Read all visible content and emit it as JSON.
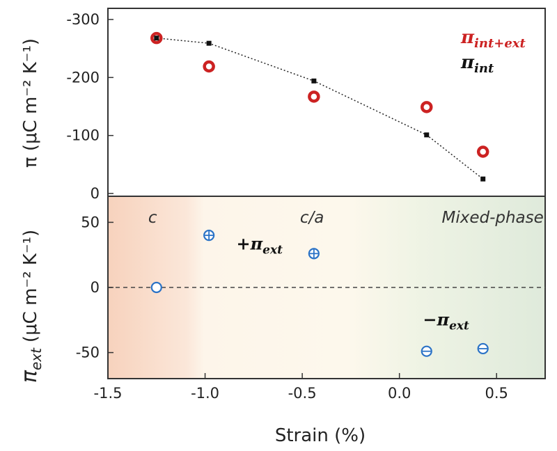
{
  "chart_data": [
    {
      "type": "scatter",
      "panel": "top",
      "ylabel": "π (μC m⁻² K⁻¹)",
      "ylim": [
        0,
        -300
      ],
      "yticks": [
        -300,
        -200,
        -100,
        0
      ],
      "ytick_labels": [
        "-300",
        "-200",
        "-100",
        "0"
      ],
      "legend": {
        "placement": "top-right",
        "entries": [
          {
            "text": "π",
            "sub": "int+ext",
            "color": "#cc2222"
          },
          {
            "text": "π",
            "sub": "int",
            "color": "#111111"
          }
        ]
      },
      "series": [
        {
          "name": "int+ext",
          "marker": "open-circle",
          "color": "#cc2222",
          "x": [
            -1.25,
            -0.98,
            -0.44,
            0.14,
            0.43
          ],
          "y": [
            -268,
            -219,
            -167,
            -149,
            -72
          ]
        },
        {
          "name": "int",
          "marker": "square-dotted-line",
          "color": "#111111",
          "x": [
            -1.25,
            -0.98,
            -0.44,
            0.14,
            0.43
          ],
          "y": [
            -268,
            -259,
            -194,
            -101,
            -25
          ]
        }
      ]
    },
    {
      "type": "scatter",
      "panel": "bottom",
      "xlabel": "Strain (%)",
      "ylabel": "πext (μC m⁻² K⁻¹)",
      "ylabel_main": "π",
      "ylabel_sub": "ext",
      "ylabel_rest": "(μC m⁻² K⁻¹)",
      "xlim": [
        -1.5,
        0.75
      ],
      "ylim": [
        -70,
        70
      ],
      "xticks": [
        -1.5,
        -1.0,
        -0.5,
        0.0,
        0.5
      ],
      "xtick_labels": [
        "-1.5",
        "-1.0",
        "-0.5",
        "0.0",
        "0.5"
      ],
      "yticks": [
        50,
        0,
        -50
      ],
      "ytick_labels": [
        "50",
        "0",
        "-50"
      ],
      "regions": [
        {
          "label": "c",
          "x": -1.27
        },
        {
          "label": "c/a",
          "x": -0.45
        },
        {
          "label": "Mixed-phase",
          "x": 0.48
        }
      ],
      "annotations": [
        {
          "text": "+π",
          "sub": "ext",
          "x": -0.72,
          "y": 29
        },
        {
          "text": "−π",
          "sub": "ext",
          "x": 0.24,
          "y": -29
        }
      ],
      "series": [
        {
          "name": "ext",
          "marker": "open-circle",
          "color": "#2a72c6",
          "x": [
            -1.25,
            -0.98,
            -0.44,
            0.14,
            0.43
          ],
          "y": [
            0,
            40,
            26,
            -49,
            -47
          ],
          "symbols": [
            "none",
            "plus",
            "plus",
            "minus",
            "minus"
          ]
        }
      ]
    }
  ]
}
